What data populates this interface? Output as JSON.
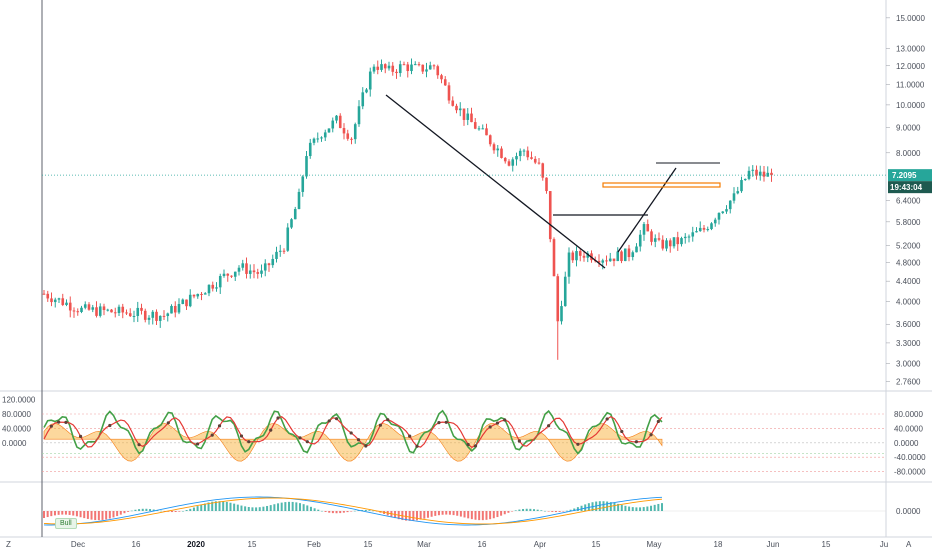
{
  "chart_data": [
    {
      "type": "candlestick",
      "price_axis_ticks": [
        "15.0000",
        "13.0000",
        "12.0000",
        "11.0000",
        "10.0000",
        "9.0000",
        "8.0000",
        "7.2095",
        "6.4000",
        "5.8000",
        "5.2000",
        "4.8000",
        "4.4000",
        "4.0000",
        "3.6000",
        "3.3000",
        "3.0000",
        "2.7600"
      ],
      "price_tick_values": [
        15.0,
        13.0,
        12.0,
        11.0,
        10.0,
        9.0,
        8.0,
        6.4,
        5.8,
        5.2,
        4.8,
        4.4,
        4.0,
        3.6,
        3.3,
        3.0,
        2.76
      ],
      "last_price": "7.2095",
      "countdown": "19:43:04",
      "scale": "log",
      "ylim": [
        2.7,
        16.0
      ],
      "x_labels": [
        "Dec",
        "16",
        "2020",
        "15",
        "Feb",
        "15",
        "Mar",
        "16",
        "Apr",
        "15",
        "May",
        "18",
        "Jun",
        "15",
        "Ju"
      ],
      "bar_count": 165,
      "key_points": [
        {
          "x": 0,
          "y": 4.15
        },
        {
          "x": 10,
          "y": 3.85
        },
        {
          "x": 22,
          "y": 3.8
        },
        {
          "x": 32,
          "y": 3.75
        },
        {
          "x": 40,
          "y": 4.1
        },
        {
          "x": 48,
          "y": 4.5
        },
        {
          "x": 52,
          "y": 4.7
        },
        {
          "x": 58,
          "y": 4.55
        },
        {
          "x": 64,
          "y": 5.2
        },
        {
          "x": 68,
          "y": 6.5
        },
        {
          "x": 70,
          "y": 8.0
        },
        {
          "x": 74,
          "y": 8.8
        },
        {
          "x": 78,
          "y": 9.3
        },
        {
          "x": 82,
          "y": 8.6
        },
        {
          "x": 86,
          "y": 11.0
        },
        {
          "x": 88,
          "y": 12.1
        },
        {
          "x": 92,
          "y": 11.7
        },
        {
          "x": 96,
          "y": 12.0
        },
        {
          "x": 100,
          "y": 11.8
        },
        {
          "x": 104,
          "y": 12.0
        },
        {
          "x": 108,
          "y": 10.5
        },
        {
          "x": 112,
          "y": 9.5
        },
        {
          "x": 116,
          "y": 8.9
        },
        {
          "x": 120,
          "y": 8.3
        },
        {
          "x": 124,
          "y": 7.7
        },
        {
          "x": 128,
          "y": 8.1
        },
        {
          "x": 132,
          "y": 7.5
        },
        {
          "x": 134,
          "y": 6.6
        },
        {
          "x": 137,
          "y": 3.65
        },
        {
          "x": 140,
          "y": 4.9
        },
        {
          "x": 144,
          "y": 5.0
        },
        {
          "x": 150,
          "y": 4.9
        },
        {
          "x": 156,
          "y": 5.0
        },
        {
          "x": 160,
          "y": 5.6
        },
        {
          "x": 164,
          "y": 5.2
        },
        {
          "x": 170,
          "y": 5.3
        },
        {
          "x": 176,
          "y": 5.6
        },
        {
          "x": 180,
          "y": 6.1
        },
        {
          "x": 184,
          "y": 6.5
        },
        {
          "x": 188,
          "y": 7.3
        },
        {
          "x": 192,
          "y": 7.2
        },
        {
          "x": 194,
          "y": 7.21
        }
      ],
      "colors": {
        "up": "#26a69a",
        "down": "#ef5350",
        "last_line": "#26a69a",
        "countdown_bg": "#26a69a"
      }
    },
    {
      "type": "line",
      "name": "oscillator",
      "axis_ticks_left": [
        "120.0000",
        "80.0000",
        "40.0000",
        "0.0000"
      ],
      "axis_ticks_right": [
        "80.0000",
        "40.0000",
        "0.0000",
        "-40.0000",
        "-80.0000"
      ],
      "ylim": [
        -95,
        130
      ],
      "colors": {
        "green": "#43a047",
        "red": "#e53935",
        "fill": "#f9a825",
        "dots": "#5d4037"
      }
    },
    {
      "type": "bar",
      "name": "histogram",
      "axis_ticks_right": [
        "0.0000"
      ],
      "label": "Bull",
      "colors": {
        "pos": "#26a69a",
        "neg": "#ef5350",
        "line1": "#2196f3",
        "line2": "#ff9800"
      }
    }
  ],
  "bottom": {
    "left_glyph": "Z",
    "right_glyph": "A"
  }
}
